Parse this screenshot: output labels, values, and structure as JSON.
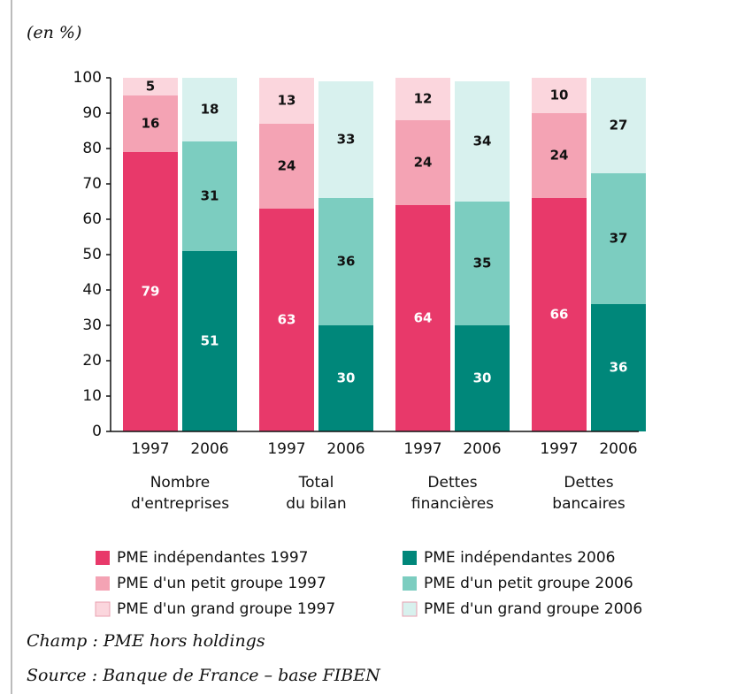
{
  "chart_data": {
    "type": "stacked_bar",
    "ylabel": "(en %)",
    "categories": [
      "1997",
      "2006",
      "1997",
      "2006",
      "1997",
      "2006",
      "1997",
      "2006"
    ],
    "groups": [
      [
        "Nombre",
        "d'entreprises"
      ],
      [
        "Total",
        "du bilan"
      ],
      [
        "Dettes",
        "financières"
      ],
      [
        "Dettes",
        "bancaires"
      ]
    ],
    "series": [
      {
        "name": "PME indépendantes 1997",
        "color": "#e8396a",
        "values": [
          79,
          null,
          63,
          null,
          64,
          null,
          66,
          null
        ]
      },
      {
        "name": "PME d'un petit groupe 1997",
        "color": "#f4a3b4",
        "values": [
          16,
          null,
          24,
          null,
          24,
          null,
          24,
          null
        ]
      },
      {
        "name": "PME d'un grand groupe 1997",
        "color": "#fbd6dd",
        "values": [
          5,
          null,
          13,
          null,
          12,
          null,
          10,
          null
        ]
      },
      {
        "name": "PME indépendantes 2006",
        "color": "#00877a",
        "values": [
          null,
          51,
          null,
          30,
          null,
          30,
          null,
          36
        ]
      },
      {
        "name": "PME d'un petit groupe 2006",
        "color": "#7ccdc0",
        "values": [
          null,
          31,
          null,
          36,
          null,
          35,
          null,
          37
        ]
      },
      {
        "name": "PME d'un grand groupe 2006",
        "color": "#d8f1ee",
        "values": [
          null,
          18,
          null,
          33,
          null,
          34,
          null,
          27
        ]
      }
    ],
    "ylim": [
      0,
      100
    ],
    "yticks": [
      0,
      10,
      20,
      30,
      40,
      50,
      60,
      70,
      80,
      90,
      100
    ],
    "notes": [
      "Champ : PME hors holdings",
      "Source : Banque de France – base FIBEN"
    ]
  }
}
